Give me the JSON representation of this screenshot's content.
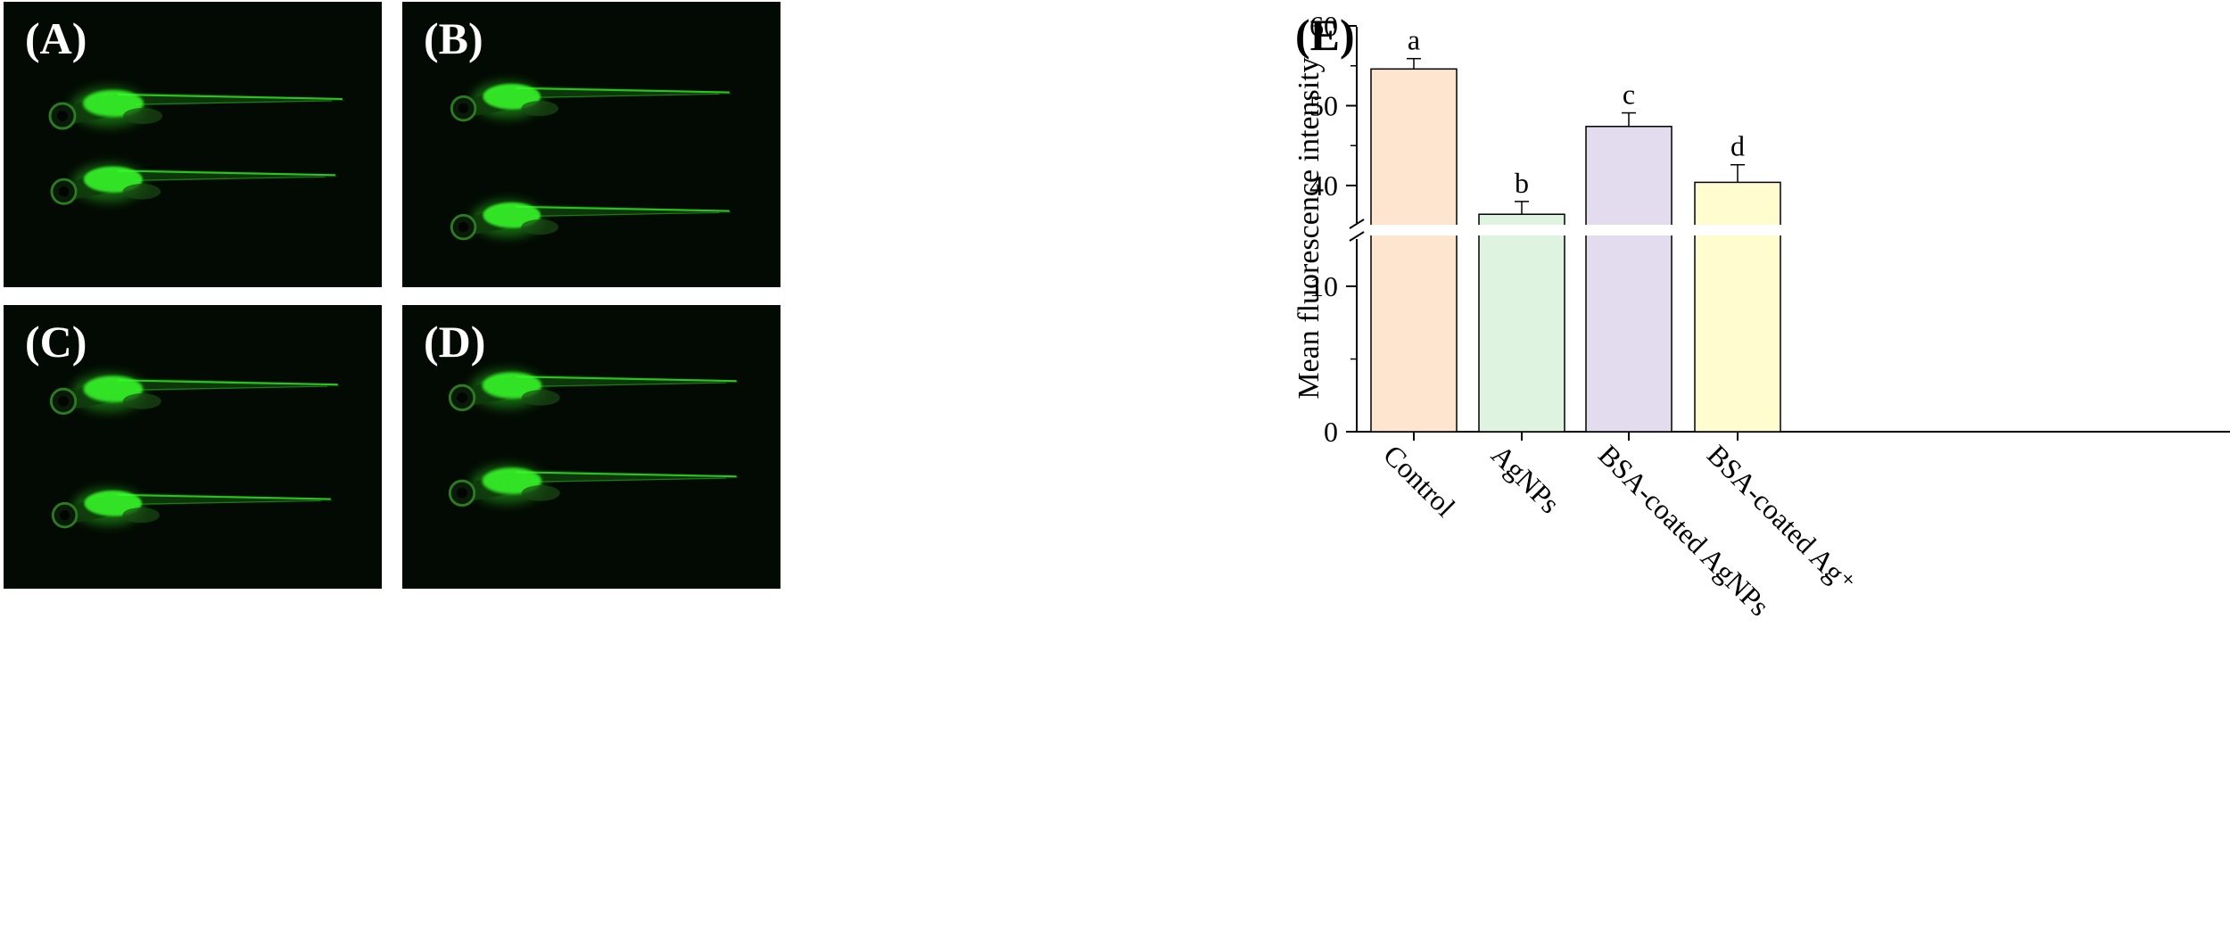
{
  "panels": [
    {
      "label": "(A)"
    },
    {
      "label": "(B)"
    },
    {
      "label": "(C)"
    },
    {
      "label": "(D)"
    }
  ],
  "colors": {
    "panel_bg": "#030a03",
    "fluorescence": "#38ff2a",
    "bars": [
      "#fde5cf",
      "#dff3e1",
      "#e3dcef",
      "#fffdd0"
    ]
  },
  "chart_data": {
    "type": "bar",
    "panel_label": "(E)",
    "categories": [
      "Control",
      "AgNPs",
      "BSA-coated AgNPs",
      "BSA-coated Ag⁺"
    ],
    "values": [
      54.6,
      36.4,
      47.4,
      40.4
    ],
    "errors": [
      1.3,
      1.6,
      1.7,
      2.2
    ],
    "significance": [
      "a",
      "b",
      "c",
      "d"
    ],
    "xlabel": "",
    "ylabel": "Mean fluorescence intensity",
    "axis_break": [
      15,
      35
    ],
    "lower_ticks": [
      "0",
      "10"
    ],
    "upper_ticks": [
      "40",
      "50",
      "60"
    ],
    "ylim": [
      0,
      60
    ],
    "grid": false
  }
}
